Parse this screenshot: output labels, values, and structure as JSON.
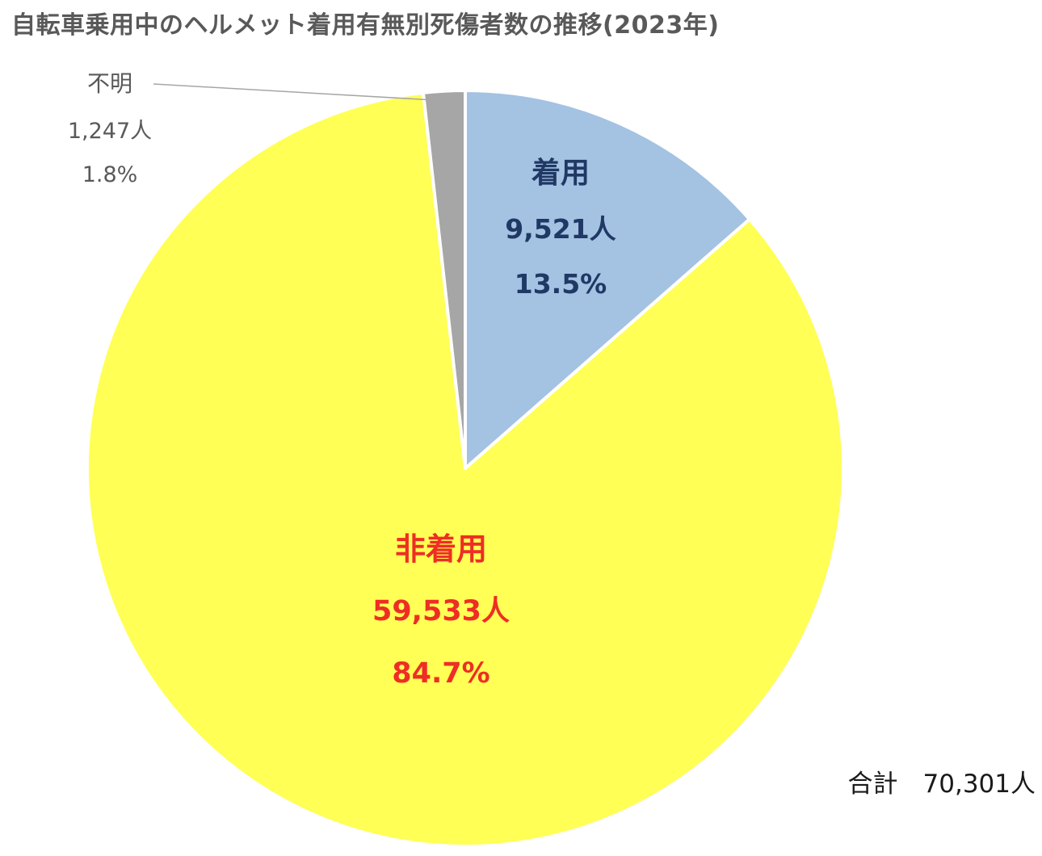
{
  "chart_data": {
    "type": "pie",
    "title": "自転車乗用中のヘルメット着用有無別死傷者数の推移(2023年)",
    "slices": [
      {
        "name": "着用",
        "value": 9521,
        "count_label": "9,521人",
        "percent_label": "13.5%",
        "color": "#a4c2e2",
        "label_color": "#1f3864"
      },
      {
        "name": "非着用",
        "value": 59533,
        "count_label": "59,533人",
        "percent_label": "84.7%",
        "color": "#ffff55",
        "label_color": "#ee2e24"
      },
      {
        "name": "不明",
        "value": 1247,
        "count_label": "1,247人",
        "percent_label": "1.8%",
        "color": "#a6a6a6",
        "label_color": "#595959"
      }
    ],
    "total_label": "合計　70,301人",
    "start_angle_deg": 0,
    "direction": "clockwise",
    "legend": "none"
  }
}
